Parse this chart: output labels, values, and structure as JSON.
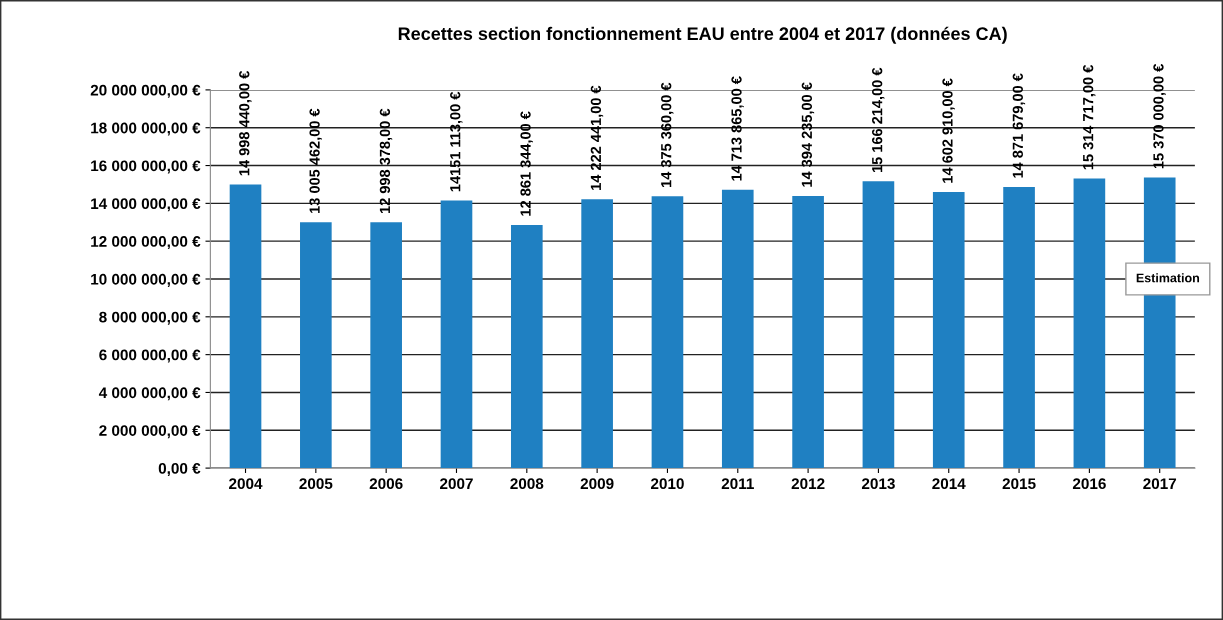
{
  "chart_data": {
    "type": "bar",
    "title": "Recettes section fonctionnement EAU entre 2004 et 2017 (données CA)",
    "categories": [
      "2004",
      "2005",
      "2006",
      "2007",
      "2008",
      "2009",
      "2010",
      "2011",
      "2012",
      "2013",
      "2014",
      "2015",
      "2016",
      "2017"
    ],
    "values": [
      14998440,
      13005462,
      12998378,
      14151113,
      12861344,
      14222441,
      14375360,
      14713865,
      14394235,
      15166214,
      14602910,
      14871679,
      15314717,
      15370000
    ],
    "value_labels": [
      "14 998 440,00 €",
      "13 005 462,00 €",
      "12 998 378,00 €",
      "14151 113,00 €",
      "12 861 344,00 €",
      "14 222 441,00 €",
      "14 375 360,00 €",
      "14 713 865,00 €",
      "14 394 235,00 €",
      "15 166 214,00 €",
      "14 602 910,00 €",
      "14 871 679,00 €",
      "15 314 717,00 €",
      "15 370 000,00 €"
    ],
    "color": "#1f80c2",
    "ylim": [
      0,
      20000000
    ],
    "yticks": [
      {
        "value": 0,
        "label": "0,00 €"
      },
      {
        "value": 2000000,
        "label": "2 000 000,00 €"
      },
      {
        "value": 4000000,
        "label": "4 000 000,00 €"
      },
      {
        "value": 6000000,
        "label": "6 000 000,00 €"
      },
      {
        "value": 8000000,
        "label": "8 000 000,00 €"
      },
      {
        "value": 10000000,
        "label": "10 000 000,00 €"
      },
      {
        "value": 12000000,
        "label": "12 000 000,00 €"
      },
      {
        "value": 14000000,
        "label": "14 000 000,00 €"
      },
      {
        "value": 16000000,
        "label": "16 000 000,00 €"
      },
      {
        "value": 18000000,
        "label": "18 000 000,00 €"
      },
      {
        "value": 20000000,
        "label": "20 000 000,00 €"
      }
    ],
    "grid": "y",
    "legend": false,
    "annotations": [
      "Estimation"
    ]
  }
}
